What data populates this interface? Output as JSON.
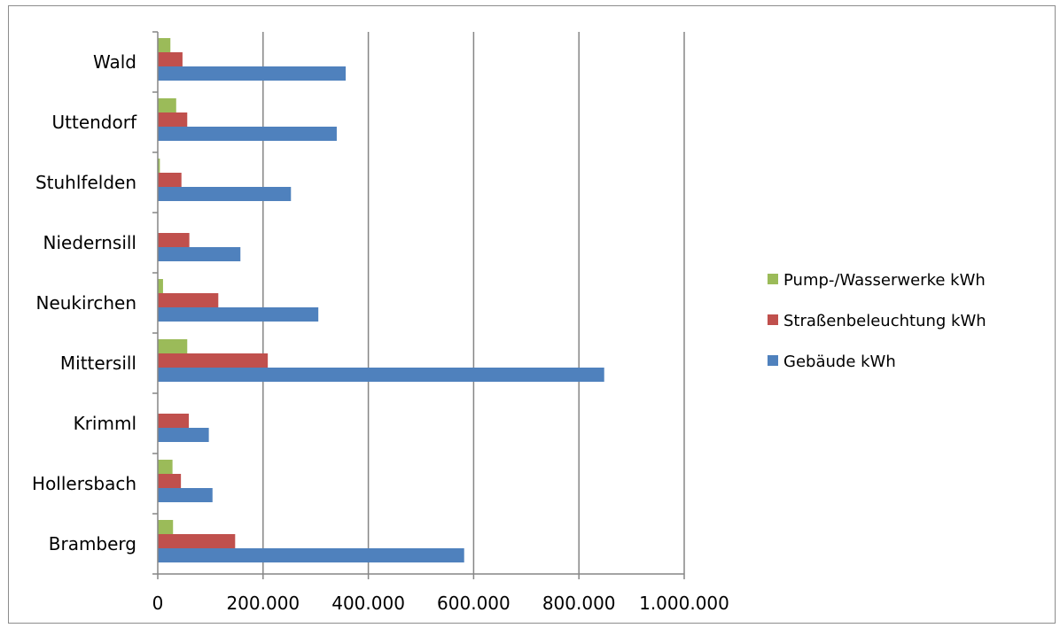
{
  "chart_data": {
    "type": "bar",
    "orientation": "horizontal",
    "categories": [
      "Bramberg",
      "Hollersbach",
      "Krimml",
      "Mittersill",
      "Neukirchen",
      "Niedernsill",
      "Stuhlfelden",
      "Uttendorf",
      "Wald"
    ],
    "series": [
      {
        "name": "Gebäude kWh",
        "color": "#4f81bd",
        "values": [
          582000,
          104000,
          97000,
          848000,
          305000,
          157000,
          253000,
          340000,
          357000
        ]
      },
      {
        "name": "Straßenbeleuchtung kWh",
        "color": "#c0504d",
        "values": [
          147000,
          44000,
          59000,
          209000,
          115000,
          60000,
          45000,
          56000,
          47000
        ]
      },
      {
        "name": "Pump-/Wasserwerke kWh",
        "color": "#9bbb59",
        "values": [
          29000,
          28000,
          0,
          56000,
          10000,
          0,
          4000,
          35000,
          24000
        ]
      }
    ],
    "xlim": [
      0,
      1000000
    ],
    "xticks": [
      0,
      200000,
      400000,
      600000,
      800000,
      1000000
    ],
    "xtick_labels": [
      "0",
      "200.000",
      "400.000",
      "600.000",
      "800.000",
      "1.000.000"
    ],
    "legend_order": [
      "Pump-/Wasserwerke kWh",
      "Straßenbeleuchtung kWh",
      "Gebäude kWh"
    ],
    "legend_position": "right",
    "grid": "vertical",
    "title": "",
    "xlabel": "",
    "ylabel": ""
  }
}
